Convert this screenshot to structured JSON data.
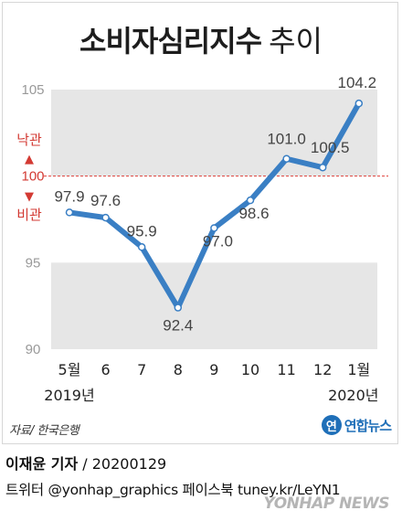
{
  "title": {
    "main": "소비자심리지수",
    "sub": "추이"
  },
  "chart_data": {
    "type": "line",
    "title": "소비자심리지수 추이",
    "x_labels": [
      "5월",
      "6",
      "7",
      "8",
      "9",
      "10",
      "11",
      "12",
      "1월"
    ],
    "year_labels": [
      "2019년",
      "2020년"
    ],
    "values": [
      97.9,
      97.6,
      95.9,
      92.4,
      97.0,
      98.6,
      101.0,
      100.5,
      104.2
    ],
    "value_labels": [
      "97.9",
      "97.6",
      "95.9",
      "92.4",
      "97.0",
      "98.6",
      "101.0",
      "100.5",
      "104.2"
    ],
    "y_ticks": [
      "105",
      "100",
      "95",
      "90"
    ],
    "ylim": [
      90,
      105
    ],
    "reference": {
      "value": 100,
      "above": "낙관",
      "below": "비관",
      "up_arrow": "▲",
      "down_arrow": "▼"
    },
    "line_color": "#3a7fc4",
    "band_color": "#e6e6e6"
  },
  "source": "자료/ 한국은행",
  "brand": {
    "mark": "연",
    "text": "연합뉴스"
  },
  "credit": {
    "name": "이재윤 기자",
    "date": "/ 20200129"
  },
  "sns": "트위터 @yonhap_graphics  페이스북 tuney.kr/LeYN1",
  "watermark": "YONHAP NEWS"
}
